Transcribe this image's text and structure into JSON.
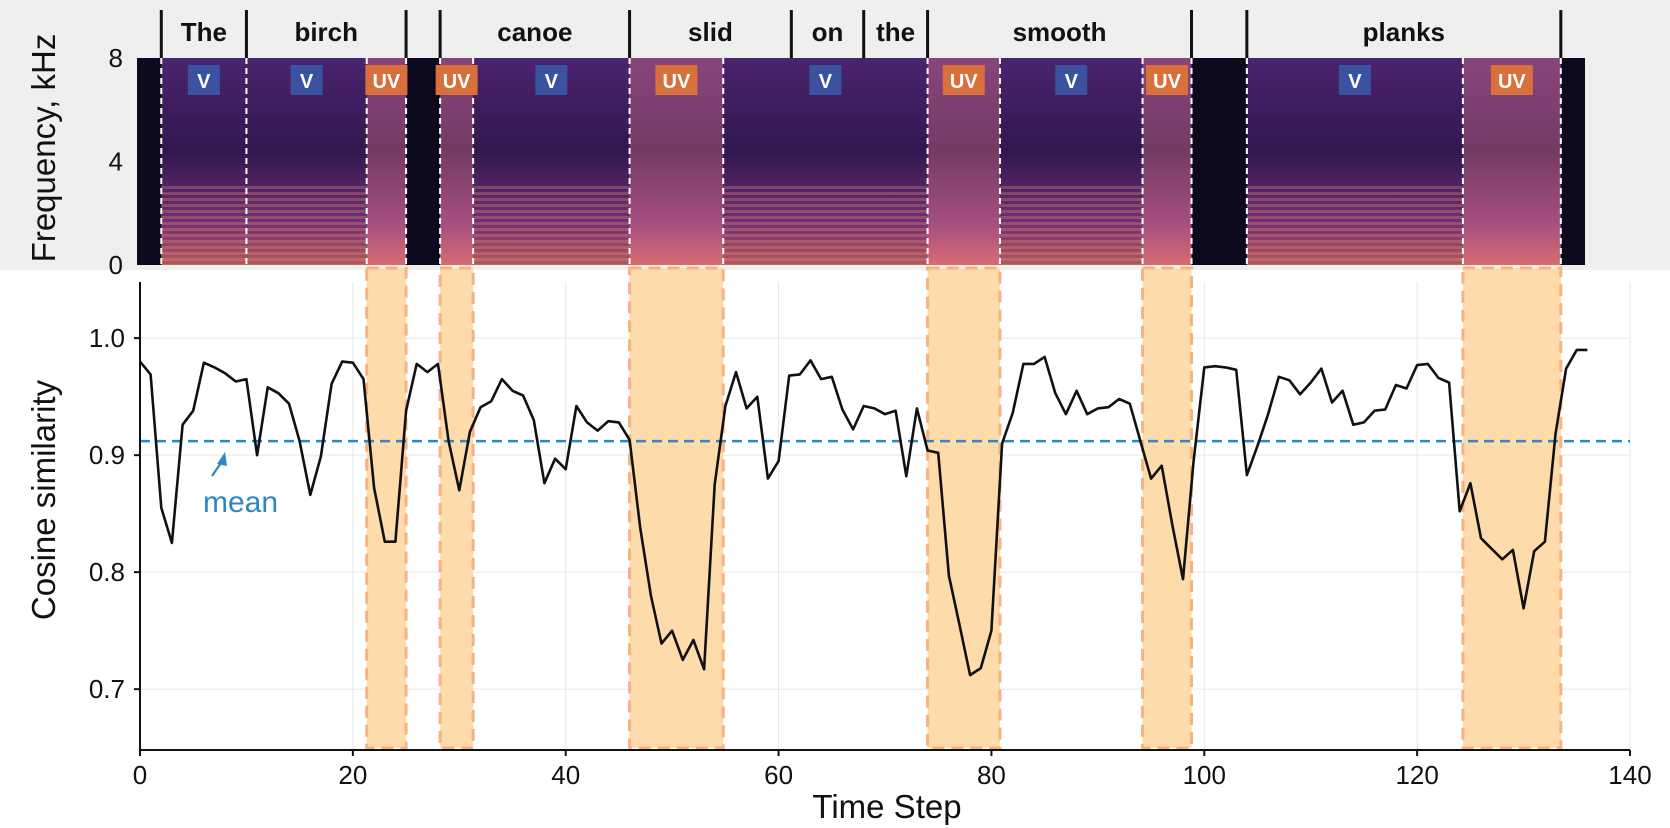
{
  "chart_data": [
    {
      "type": "heatmap",
      "name": "spectrogram",
      "ylabel": "Frequency, kHz",
      "yticks": [
        0,
        4,
        8
      ],
      "colormap": "magma",
      "words": [
        {
          "text": "The",
          "start": 2,
          "end": 10
        },
        {
          "text": "birch",
          "start": 10,
          "end": 25
        },
        {
          "text": "canoe",
          "start": 28.2,
          "end": 46
        },
        {
          "text": "slid",
          "start": 46,
          "end": 61.2
        },
        {
          "text": "on",
          "start": 61.2,
          "end": 68
        },
        {
          "text": "the",
          "start": 68,
          "end": 74
        },
        {
          "text": "smooth",
          "start": 74,
          "end": 98.8
        },
        {
          "text": "planks",
          "start": 104,
          "end": 133.5
        }
      ],
      "word_gaps": [
        {
          "start": 25,
          "end": 28.2
        },
        {
          "start": 98.8,
          "end": 104
        }
      ],
      "segments": [
        {
          "label": "V",
          "start": 2,
          "end": 10
        },
        {
          "label": "V",
          "start": 10,
          "end": 21.3
        },
        {
          "label": "UV",
          "start": 21.3,
          "end": 25
        },
        {
          "label": "UV",
          "start": 28.2,
          "end": 31.3
        },
        {
          "label": "V",
          "start": 31.3,
          "end": 46
        },
        {
          "label": "UV",
          "start": 46,
          "end": 54.8
        },
        {
          "label": "V",
          "start": 54.8,
          "end": 74
        },
        {
          "label": "UV",
          "start": 74,
          "end": 80.8
        },
        {
          "label": "V",
          "start": 80.8,
          "end": 94.2
        },
        {
          "label": "UV",
          "start": 94.2,
          "end": 98.8
        },
        {
          "label": "V",
          "start": 104,
          "end": 124.3
        },
        {
          "label": "UV",
          "start": 124.3,
          "end": 133.5
        }
      ],
      "colors": {
        "V": "#3a52a0",
        "UV": "#d8703c",
        "panel_bg": "#efefef"
      }
    },
    {
      "type": "line",
      "name": "cosine-similarity",
      "xlabel": "Time Step",
      "ylabel": "Cosine similarity",
      "xlim": [
        0,
        140
      ],
      "ylim": [
        0.648,
        1.048
      ],
      "xticks": [
        0,
        20,
        40,
        60,
        80,
        100,
        120,
        140
      ],
      "yticks": [
        0.7,
        0.8,
        0.9,
        1.0
      ],
      "ytick_labels": [
        "0.7",
        "0.8",
        "0.9",
        "1.0"
      ],
      "grid": true,
      "x": [
        0,
        1,
        2,
        3,
        4,
        5,
        6,
        7,
        8,
        9,
        10,
        11,
        12,
        13,
        14,
        15,
        16,
        17,
        18,
        19,
        20,
        21,
        22,
        23,
        24,
        25,
        26,
        27,
        28,
        29,
        30,
        31,
        32,
        33,
        34,
        35,
        36,
        37,
        38,
        39,
        40,
        41,
        42,
        43,
        44,
        45,
        46,
        47,
        48,
        49,
        50,
        51,
        52,
        53,
        54,
        55,
        56,
        57,
        58,
        59,
        60,
        61,
        62,
        63,
        64,
        65,
        66,
        67,
        68,
        69,
        70,
        71,
        72,
        73,
        74,
        75,
        76,
        77,
        78,
        79,
        80,
        81,
        82,
        83,
        84,
        85,
        86,
        87,
        88,
        89,
        90,
        91,
        92,
        93,
        94,
        95,
        96,
        97,
        98,
        99,
        100,
        101,
        102,
        103,
        104,
        105,
        106,
        107,
        108,
        109,
        110,
        111,
        112,
        113,
        114,
        115,
        116,
        117,
        118,
        119,
        120,
        121,
        122,
        123,
        124,
        125,
        126,
        127,
        128,
        129,
        130,
        131,
        132,
        133,
        134,
        135,
        136
      ],
      "y": [
        0.98,
        0.969,
        0.855,
        0.825,
        0.926,
        0.938,
        0.979,
        0.975,
        0.97,
        0.963,
        0.965,
        0.9,
        0.958,
        0.953,
        0.944,
        0.912,
        0.866,
        0.899,
        0.961,
        0.98,
        0.979,
        0.965,
        0.872,
        0.826,
        0.826,
        0.938,
        0.978,
        0.971,
        0.978,
        0.912,
        0.87,
        0.92,
        0.941,
        0.946,
        0.965,
        0.955,
        0.951,
        0.93,
        0.876,
        0.897,
        0.888,
        0.942,
        0.928,
        0.921,
        0.929,
        0.928,
        0.913,
        0.838,
        0.78,
        0.739,
        0.75,
        0.725,
        0.742,
        0.717,
        0.875,
        0.942,
        0.971,
        0.94,
        0.95,
        0.88,
        0.895,
        0.968,
        0.969,
        0.981,
        0.965,
        0.967,
        0.939,
        0.922,
        0.942,
        0.94,
        0.935,
        0.938,
        0.882,
        0.94,
        0.904,
        0.902,
        0.797,
        0.755,
        0.712,
        0.718,
        0.75,
        0.91,
        0.936,
        0.978,
        0.978,
        0.984,
        0.953,
        0.935,
        0.955,
        0.935,
        0.94,
        0.941,
        0.948,
        0.944,
        0.912,
        0.88,
        0.891,
        0.84,
        0.794,
        0.895,
        0.975,
        0.976,
        0.975,
        0.973,
        0.883,
        0.908,
        0.935,
        0.967,
        0.964,
        0.952,
        0.962,
        0.974,
        0.945,
        0.955,
        0.926,
        0.928,
        0.938,
        0.939,
        0.96,
        0.957,
        0.977,
        0.978,
        0.966,
        0.962,
        0.852,
        0.876,
        0.829,
        0.82,
        0.811,
        0.819,
        0.769,
        0.818,
        0.826,
        0.918,
        0.974,
        0.99,
        0.99
      ],
      "mean": 0.912,
      "mean_label": "mean",
      "highlight_regions": [
        [
          21.3,
          25
        ],
        [
          28.2,
          31.3
        ],
        [
          46,
          54.8
        ],
        [
          74,
          80.8
        ],
        [
          94.2,
          98.8
        ],
        [
          124.3,
          133.5
        ]
      ],
      "colors": {
        "line": "#111111",
        "mean": "#2f86c6",
        "region_fill": "#fdd9a6",
        "region_border": "#f6b381"
      }
    }
  ]
}
